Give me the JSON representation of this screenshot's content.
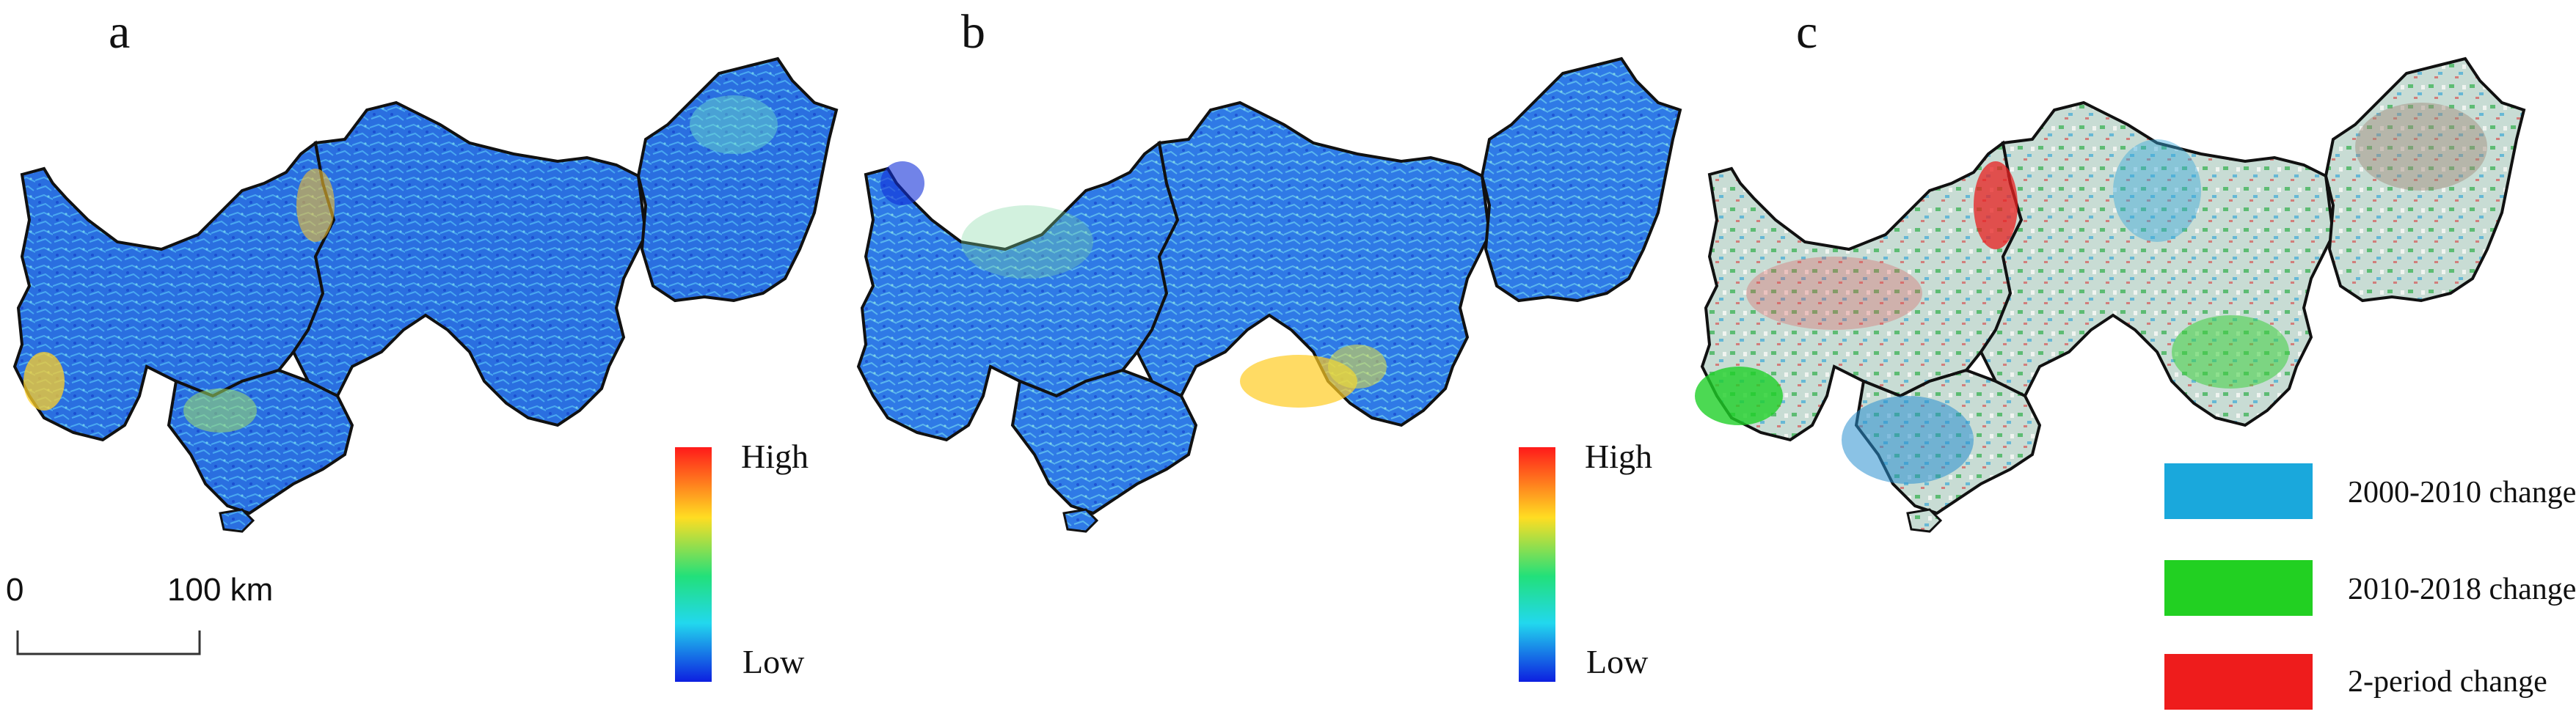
{
  "panels": [
    {
      "letter": "a",
      "colorbar": {
        "high": "High",
        "low": "Low"
      }
    },
    {
      "letter": "b",
      "colorbar": {
        "high": "High",
        "low": "Low"
      }
    },
    {
      "letter": "c"
    }
  ],
  "scale_bar": {
    "start": "0",
    "end": "100 km"
  },
  "change_legend": [
    {
      "label": "2000-2010 change",
      "color": "#1aa8dc"
    },
    {
      "label": "2010-2018 change",
      "color": "#22d022"
    },
    {
      "label": "2-period change",
      "color": "#ee1c1c"
    }
  ],
  "colors": {
    "gradient": [
      "#ff1a1a",
      "#ffdd22",
      "#22e07a",
      "#22d8ee",
      "#0d1fe0"
    ],
    "map_a_fill": "#2a6fe0",
    "map_b_fill": "#2f7ae6",
    "map_c_fill": "#c8dcd4",
    "outline": "#111111"
  }
}
